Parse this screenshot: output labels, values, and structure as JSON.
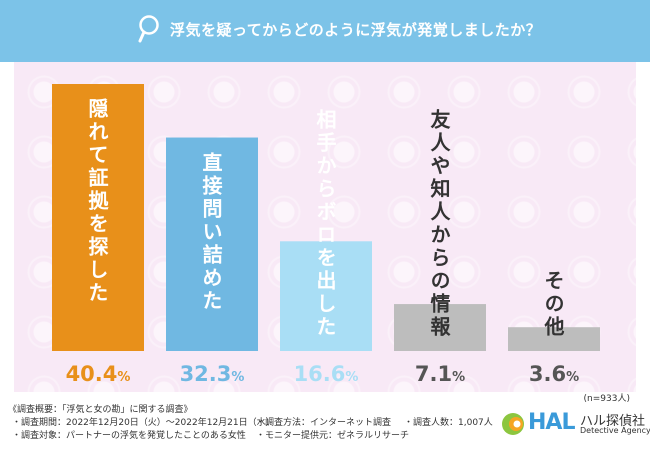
{
  "header": {
    "question": "浮気を疑ってからどのように浮気が発覚しましたか？"
  },
  "chart_data": {
    "type": "bar",
    "title": "浮気を疑ってからどのように浮気が発覚しましたか？",
    "categories": [
      "隠れて証拠を探した",
      "直接問い詰めた",
      "相手からボロを出した",
      "友人や知人からの情報",
      "その他"
    ],
    "values": [
      40.4,
      32.3,
      16.6,
      7.1,
      3.6
    ],
    "value_labels": [
      "40.4",
      "32.3",
      "16.6",
      "7.1",
      "3.6"
    ],
    "unit": "%",
    "colors": [
      "#e8901a",
      "#70b8e2",
      "#a9def5",
      "#bdbdbd",
      "#bdbdbd"
    ],
    "label_colors": [
      "#ffffff",
      "#ffffff",
      "#ffffff",
      "#333333",
      "#333333"
    ],
    "pct_colors": [
      "#e8901a",
      "#70b8e2",
      "#a9def5",
      "#555555",
      "#555555"
    ],
    "sample_note": "(n=933人)",
    "ylim": [
      0,
      45
    ],
    "grid": false
  },
  "footer": {
    "summary": "《調査概要：「浮気と女の勘」に関する調査》",
    "period": "・調査期間：2022年12月20日（火）～2022年12月21日（水）",
    "target": "・調査対象：パートナーの浮気を発覚したことのある女性",
    "method": "・調査方法：インターネット調査",
    "provider": "・モニター提供元：ゼネラルリサーチ",
    "count": "・調査人数：1,007人"
  },
  "logo": {
    "mark": "HAL",
    "name_jp": "ハル探偵社",
    "name_en": "Detective Agency"
  },
  "colors": {
    "header": "#7cc3e8",
    "background": "#f8e9f6"
  }
}
